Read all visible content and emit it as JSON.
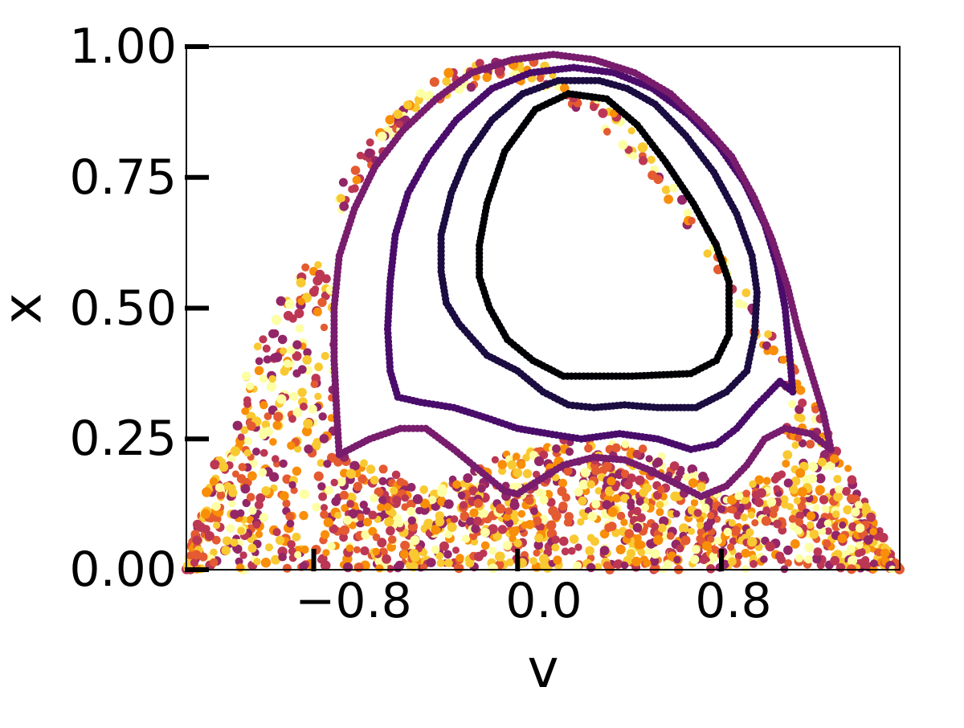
{
  "chart_data": {
    "type": "scatter",
    "title": "",
    "xlabel": "v",
    "ylabel": "x",
    "xlim": [
      -1.3,
      1.5
    ],
    "ylim": [
      0,
      1
    ],
    "xticks": [
      -0.8,
      0.0,
      0.8
    ],
    "xtick_labels": [
      "−0.8",
      "0.0",
      "0.8"
    ],
    "yticks": [
      0,
      0.25,
      0.5,
      0.75,
      1.0
    ],
    "ytick_labels": [
      "0.00",
      "0.25",
      "0.50",
      "0.75",
      "1.00"
    ],
    "grid": false,
    "legend": "none",
    "colormap": "inferno",
    "series": [
      {
        "color": "#000004",
        "values": [
          [
            0.18,
            0.37
          ],
          [
            0.45,
            0.37
          ],
          [
            0.68,
            0.375
          ],
          [
            0.78,
            0.4
          ],
          [
            0.83,
            0.45
          ],
          [
            0.83,
            0.55
          ],
          [
            0.78,
            0.62
          ],
          [
            0.69,
            0.7
          ],
          [
            0.58,
            0.78
          ],
          [
            0.47,
            0.85
          ],
          [
            0.35,
            0.9
          ],
          [
            0.2,
            0.91
          ],
          [
            0.07,
            0.88
          ],
          [
            -0.05,
            0.8
          ],
          [
            -0.12,
            0.7
          ],
          [
            -0.15,
            0.62
          ],
          [
            -0.15,
            0.56
          ],
          [
            -0.11,
            0.5
          ],
          [
            -0.04,
            0.44
          ],
          [
            0.06,
            0.4
          ]
        ]
      },
      {
        "color": "#1b0c41",
        "values": [
          [
            -0.23,
            0.47
          ],
          [
            -0.12,
            0.41
          ],
          [
            0.0,
            0.38
          ],
          [
            0.1,
            0.34
          ],
          [
            0.2,
            0.315
          ],
          [
            0.3,
            0.31
          ],
          [
            0.42,
            0.315
          ],
          [
            0.55,
            0.31
          ],
          [
            0.7,
            0.31
          ],
          [
            0.82,
            0.34
          ],
          [
            0.9,
            0.38
          ],
          [
            0.93,
            0.45
          ],
          [
            0.94,
            0.53
          ],
          [
            0.92,
            0.6
          ],
          [
            0.86,
            0.68
          ],
          [
            0.77,
            0.76
          ],
          [
            0.66,
            0.83
          ],
          [
            0.54,
            0.89
          ],
          [
            0.43,
            0.92
          ],
          [
            0.32,
            0.935
          ],
          [
            0.16,
            0.935
          ],
          [
            0.02,
            0.91
          ],
          [
            -0.1,
            0.86
          ],
          [
            -0.2,
            0.79
          ],
          [
            -0.26,
            0.72
          ],
          [
            -0.3,
            0.64
          ],
          [
            -0.3,
            0.57
          ],
          [
            -0.28,
            0.51
          ]
        ]
      },
      {
        "color": "#4a0c6b",
        "values": [
          [
            -0.5,
            0.38
          ],
          [
            -0.47,
            0.33
          ],
          [
            -0.38,
            0.32
          ],
          [
            -0.25,
            0.31
          ],
          [
            -0.12,
            0.29
          ],
          [
            0.0,
            0.27
          ],
          [
            0.12,
            0.26
          ],
          [
            0.25,
            0.25
          ],
          [
            0.4,
            0.26
          ],
          [
            0.55,
            0.25
          ],
          [
            0.68,
            0.23
          ],
          [
            0.78,
            0.24
          ],
          [
            0.86,
            0.27
          ],
          [
            0.93,
            0.31
          ],
          [
            0.99,
            0.34
          ],
          [
            1.03,
            0.36
          ],
          [
            1.08,
            0.34
          ],
          [
            1.07,
            0.4
          ],
          [
            1.05,
            0.5
          ],
          [
            1.02,
            0.58
          ],
          [
            0.97,
            0.66
          ],
          [
            0.89,
            0.74
          ],
          [
            0.79,
            0.81
          ],
          [
            0.67,
            0.87
          ],
          [
            0.53,
            0.92
          ],
          [
            0.38,
            0.95
          ],
          [
            0.22,
            0.96
          ],
          [
            0.05,
            0.95
          ],
          [
            -0.1,
            0.92
          ],
          [
            -0.24,
            0.86
          ],
          [
            -0.35,
            0.79
          ],
          [
            -0.43,
            0.72
          ],
          [
            -0.48,
            0.64
          ],
          [
            -0.5,
            0.55
          ],
          [
            -0.51,
            0.46
          ]
        ]
      },
      {
        "color": "#781c6d",
        "values": [
          [
            -0.7,
            0.22
          ],
          [
            -0.58,
            0.25
          ],
          [
            -0.46,
            0.27
          ],
          [
            -0.36,
            0.27
          ],
          [
            -0.25,
            0.23
          ],
          [
            -0.15,
            0.19
          ],
          [
            -0.05,
            0.15
          ],
          [
            0.0,
            0.145
          ],
          [
            0.08,
            0.17
          ],
          [
            0.18,
            0.2
          ],
          [
            0.3,
            0.215
          ],
          [
            0.42,
            0.21
          ],
          [
            0.52,
            0.19
          ],
          [
            0.62,
            0.165
          ],
          [
            0.72,
            0.14
          ],
          [
            0.82,
            0.16
          ],
          [
            0.9,
            0.2
          ],
          [
            0.97,
            0.25
          ],
          [
            1.05,
            0.27
          ],
          [
            1.15,
            0.26
          ],
          [
            1.23,
            0.23
          ],
          [
            1.2,
            0.3
          ],
          [
            1.15,
            0.38
          ],
          [
            1.1,
            0.46
          ],
          [
            1.06,
            0.54
          ],
          [
            1.0,
            0.63
          ],
          [
            0.93,
            0.71
          ],
          [
            0.84,
            0.79
          ],
          [
            0.73,
            0.85
          ],
          [
            0.6,
            0.91
          ],
          [
            0.46,
            0.95
          ],
          [
            0.3,
            0.975
          ],
          [
            0.14,
            0.985
          ],
          [
            -0.02,
            0.975
          ],
          [
            -0.18,
            0.95
          ],
          [
            -0.32,
            0.9
          ],
          [
            -0.45,
            0.84
          ],
          [
            -0.56,
            0.77
          ],
          [
            -0.64,
            0.69
          ],
          [
            -0.7,
            0.6
          ],
          [
            -0.72,
            0.5
          ],
          [
            -0.72,
            0.4
          ],
          [
            -0.71,
            0.3
          ]
        ]
      }
    ],
    "chaotic_sea": {
      "colors": [
        "#bc3754",
        "#e45a31",
        "#f98e09",
        "#f9c932",
        "#fcffa4",
        "#932667"
      ],
      "region": "v from -1.3 to 1.5, x from 0 to about 0.99, outside the closed curves",
      "point_count": 1800
    }
  }
}
